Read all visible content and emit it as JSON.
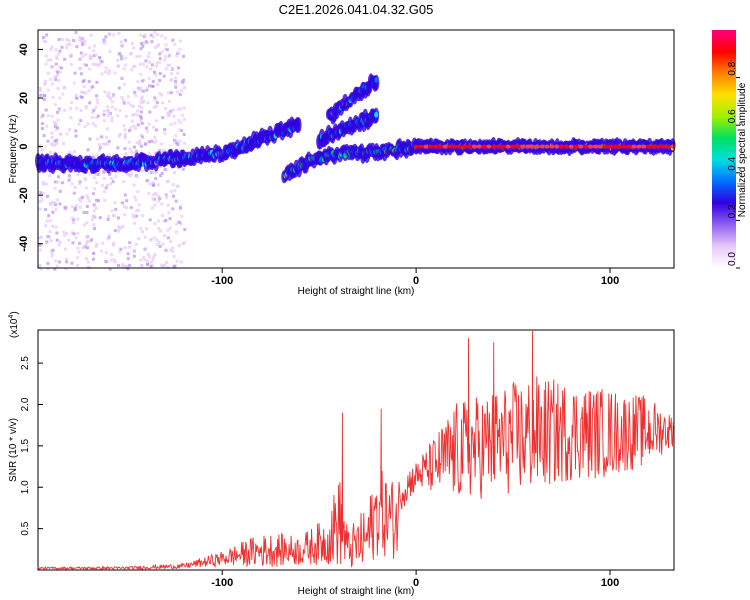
{
  "title": "C2E1.2026.041.04.32.G05",
  "chart_data": [
    {
      "type": "heatmap",
      "title": "C2E1.2026.041.04.32.G05",
      "xlabel": "Height of straight line (km)",
      "ylabel": "Frequency (Hz)",
      "xlim": [
        -195,
        133
      ],
      "ylim": [
        -50,
        48
      ],
      "x_ticks": [
        -100,
        0,
        100
      ],
      "x_tick_labels": [
        "-100",
        "0",
        "100"
      ],
      "y_ticks": [
        -40,
        -20,
        0,
        20,
        40
      ],
      "y_tick_labels": [
        "-40",
        "-20",
        "0",
        "20",
        "40"
      ],
      "colorbar": {
        "label": "Normalized spectral amplitude",
        "range": [
          0,
          1
        ],
        "ticks": [
          0,
          0.2,
          0.4,
          0.6,
          0.8
        ],
        "tick_labels": [
          "0.0",
          "0.2",
          "0.4",
          "0.6",
          "0.8"
        ],
        "colors": [
          "#ffffff",
          "#e8c8f8",
          "#9060f0",
          "#3000e0",
          "#0070ff",
          "#00e0e0",
          "#00e060",
          "#a0f000",
          "#ffe000",
          "#ff8000",
          "#ff0000",
          "#ff0080"
        ]
      },
      "features": [
        {
          "name": "main-trace",
          "x": [
            -195,
            -150,
            -100,
            -70,
            -60
          ],
          "y": [
            -7,
            -7,
            -3,
            6,
            9
          ],
          "amplitude": 0.35
        },
        {
          "name": "mid-trace",
          "x": [
            -68,
            -55,
            -40,
            -20,
            0
          ],
          "y": [
            -12,
            -6,
            -3,
            -2,
            0
          ],
          "amplitude": 0.45
        },
        {
          "name": "flat-trace",
          "x": [
            0,
            133
          ],
          "y": [
            0,
            0
          ],
          "amplitude": 0.95
        },
        {
          "name": "upper-branch",
          "x": [
            -45,
            -20
          ],
          "y": [
            12,
            28
          ],
          "amplitude": 0.3
        },
        {
          "name": "second-branch",
          "x": [
            -50,
            -20
          ],
          "y": [
            3,
            13
          ],
          "amplitude": 0.35
        }
      ]
    },
    {
      "type": "line",
      "xlabel": "Height of straight line (km)",
      "ylabel": "SNR (10 * v/v)",
      "y_scale_label": "(x10",
      "y_scale_exponent": "4",
      "y_scale_suffix": ")",
      "xlim": [
        -195,
        133
      ],
      "ylim": [
        0,
        2.9
      ],
      "x_ticks": [
        -100,
        0,
        100
      ],
      "x_tick_labels": [
        "-100",
        "0",
        "100"
      ],
      "y_ticks": [
        0.5,
        1.0,
        1.5,
        2.0,
        2.5
      ],
      "y_tick_labels": [
        "0.5",
        "1.0",
        "1.5",
        "2.0",
        "2.5"
      ],
      "series": [
        {
          "name": "SNR",
          "color": "#ee3030",
          "envelope": {
            "x": [
              -195,
              -150,
              -120,
              -100,
              -85,
              -75,
              -60,
              -45,
              -40,
              -35,
              -25,
              -20,
              -10,
              -8,
              0,
              10,
              20,
              40,
              60,
              80,
              100,
              120,
              133
            ],
            "base": [
              0.02,
              0.02,
              0.04,
              0.12,
              0.18,
              0.2,
              0.2,
              0.3,
              0.5,
              0.2,
              0.3,
              0.6,
              0.5,
              0.9,
              1.1,
              1.2,
              1.3,
              1.4,
              1.5,
              1.55,
              1.55,
              1.6,
              1.65
            ],
            "amp": [
              0.02,
              0.03,
              0.05,
              0.15,
              0.3,
              0.35,
              0.3,
              0.5,
              1.0,
              0.4,
              0.7,
              0.9,
              0.8,
              0.4,
              0.3,
              0.6,
              1.0,
              1.1,
              1.2,
              1.0,
              0.9,
              0.7,
              0.3
            ]
          }
        }
      ],
      "notable_peaks": [
        {
          "x": 60,
          "y": 2.9
        },
        {
          "x": 40,
          "y": 2.75
        },
        {
          "x": 27,
          "y": 2.8
        },
        {
          "x": -38,
          "y": 1.9
        },
        {
          "x": -18,
          "y": 1.95
        }
      ]
    }
  ]
}
